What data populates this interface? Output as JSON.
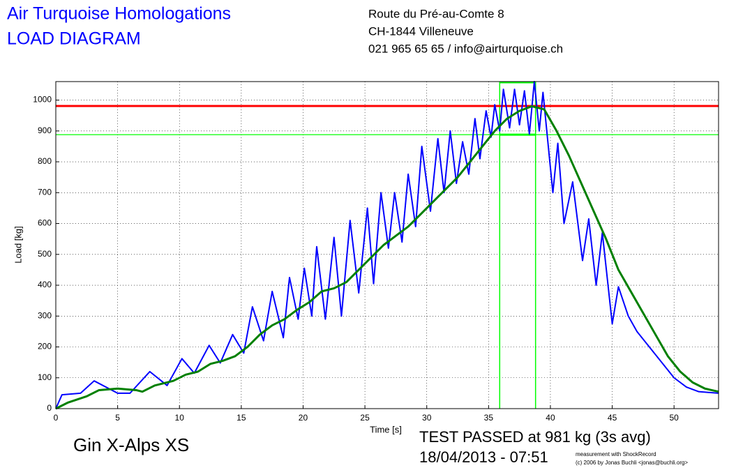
{
  "chart_data": {
    "type": "line",
    "title": "Air Turquoise Homologations",
    "subtitle": "LOAD DIAGRAM",
    "address": [
      "Route du Pré-au-Comte 8",
      "CH-1844 Villeneuve",
      "021 965 65 65 / info@airturquoise.ch"
    ],
    "product": "Gin X-Alps XS",
    "result": [
      "TEST PASSED at 981 kg (3s avg)",
      "18/04/2013 - 07:51"
    ],
    "credits": [
      "measurement with ShockRecord",
      "(c) 2006 by Jonas Buchli <jonas@buchli.org>"
    ],
    "x_label": "Time [s]",
    "y_label": "Load [kg]",
    "xlim": [
      0,
      53.6
    ],
    "ylim": [
      0,
      1060
    ],
    "xticks": [
      0,
      5,
      10,
      15,
      20,
      25,
      30,
      35,
      40,
      45,
      50
    ],
    "yticks": [
      0,
      100,
      200,
      300,
      400,
      500,
      600,
      700,
      800,
      900,
      1000
    ],
    "grid": true,
    "hlines": [
      {
        "value": 981,
        "color": "#ff0000"
      },
      {
        "value": 888,
        "color": "#00ff00"
      }
    ],
    "window": {
      "x0": 35.9,
      "x1": 38.8,
      "y": 888,
      "color": "#00ff00"
    },
    "series": [
      {
        "color": "#0000ff",
        "width": 2,
        "x": [
          0,
          0.5,
          2,
          3.1,
          5,
          6,
          7.6,
          9,
          10.2,
          11.2,
          12.4,
          13.3,
          14.3,
          15.2,
          15.9,
          16.8,
          17.5,
          18.4,
          18.9,
          19.6,
          20.1,
          20.7,
          21.1,
          21.8,
          22.5,
          23.1,
          23.8,
          24.5,
          25.2,
          25.7,
          26.3,
          26.9,
          27.4,
          28,
          28.5,
          29.1,
          29.6,
          30.3,
          30.9,
          31.4,
          31.9,
          32.4,
          32.9,
          33.4,
          33.9,
          34.3,
          34.8,
          35.2,
          35.5,
          35.9,
          36.2,
          36.7,
          37.1,
          37.5,
          37.9,
          38.3,
          38.7,
          39.1,
          39.4,
          40.2,
          40.6,
          41.1,
          41.8,
          42.6,
          43.1,
          43.7,
          44.2,
          45,
          45.5,
          46.3,
          47,
          48,
          49,
          50,
          51,
          52,
          53.6
        ],
        "values": [
          0,
          45,
          50,
          90,
          50,
          50,
          120,
          75,
          162,
          115,
          205,
          148,
          240,
          180,
          330,
          220,
          380,
          230,
          425,
          290,
          455,
          300,
          525,
          290,
          555,
          300,
          610,
          375,
          650,
          405,
          700,
          520,
          700,
          540,
          760,
          590,
          850,
          640,
          875,
          700,
          900,
          730,
          865,
          760,
          940,
          810,
          965,
          880,
          985,
          900,
          1035,
          910,
          1035,
          920,
          1030,
          890,
          1060,
          900,
          1025,
          700,
          860,
          600,
          735,
          480,
          615,
          400,
          570,
          275,
          395,
          300,
          250,
          200,
          150,
          100,
          70,
          55,
          50
        ]
      },
      {
        "color": "#008000",
        "width": 3,
        "x": [
          0,
          1,
          2.5,
          3.5,
          5,
          6.5,
          7,
          8,
          9.5,
          10.5,
          11.5,
          12.5,
          13.5,
          14.5,
          15.5,
          16.5,
          17.5,
          18.5,
          19.5,
          20.5,
          21.5,
          22.5,
          23.5,
          24.5,
          25.5,
          26.5,
          27.5,
          28.5,
          29.5,
          30.5,
          31.5,
          32.5,
          33.5,
          34.5,
          35.5,
          36.5,
          37.5,
          38.5,
          39.5,
          40.5,
          41.5,
          42.5,
          43.5,
          44.5,
          45.5,
          46.5,
          47.5,
          48.5,
          49.5,
          50.5,
          51.5,
          52.5,
          53.6
        ],
        "values": [
          0,
          20,
          40,
          60,
          65,
          60,
          55,
          75,
          90,
          110,
          120,
          145,
          155,
          170,
          200,
          240,
          270,
          290,
          320,
          345,
          380,
          390,
          410,
          450,
          490,
          530,
          560,
          590,
          630,
          670,
          710,
          750,
          800,
          850,
          900,
          940,
          965,
          980,
          970,
          900,
          820,
          730,
          640,
          550,
          450,
          380,
          310,
          240,
          170,
          120,
          85,
          65,
          55
        ]
      }
    ]
  }
}
